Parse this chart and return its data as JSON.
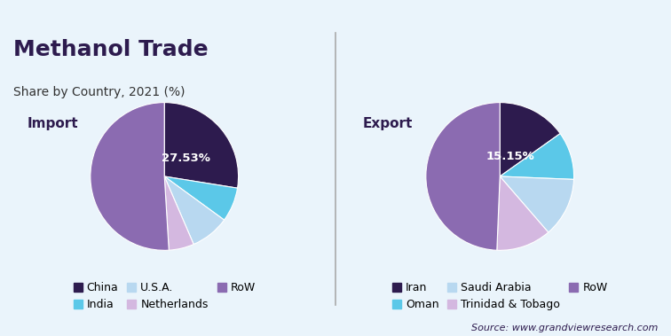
{
  "title": "Methanol Trade",
  "subtitle": "Share by Country, 2021 (%)",
  "background_color": "#eaf4fb",
  "top_strip_color": "#a8d8ea",
  "import_label": "Import",
  "export_label": "Export",
  "import": {
    "labels": [
      "China",
      "India",
      "U.S.A.",
      "Netherlands",
      "RoW"
    ],
    "values": [
      27.53,
      7.5,
      8.5,
      5.5,
      50.97
    ],
    "colors": [
      "#2d1b4e",
      "#5bc8e8",
      "#b8d8f0",
      "#d4b8e0",
      "#8b6bb1"
    ],
    "label_text": "27.53%",
    "label_index": 0,
    "startangle": 90
  },
  "export": {
    "labels": [
      "Iran",
      "Oman",
      "Saudi Arabia",
      "Trinidad & Tobago",
      "RoW"
    ],
    "values": [
      15.15,
      10.5,
      13.0,
      12.0,
      49.35
    ],
    "colors": [
      "#2d1b4e",
      "#5bc8e8",
      "#b8d8f0",
      "#d4b8e0",
      "#8b6bb1"
    ],
    "label_text": "15.15%",
    "label_index": 0,
    "startangle": 90
  },
  "source_text": "Source: www.grandviewresearch.com",
  "title_color": "#2d1b4e",
  "subtitle_color": "#333333",
  "label_color": "#2d1b4e",
  "source_color": "#2d1b4e",
  "divider_color": "#aaaaaa",
  "legend_fontsize": 9
}
